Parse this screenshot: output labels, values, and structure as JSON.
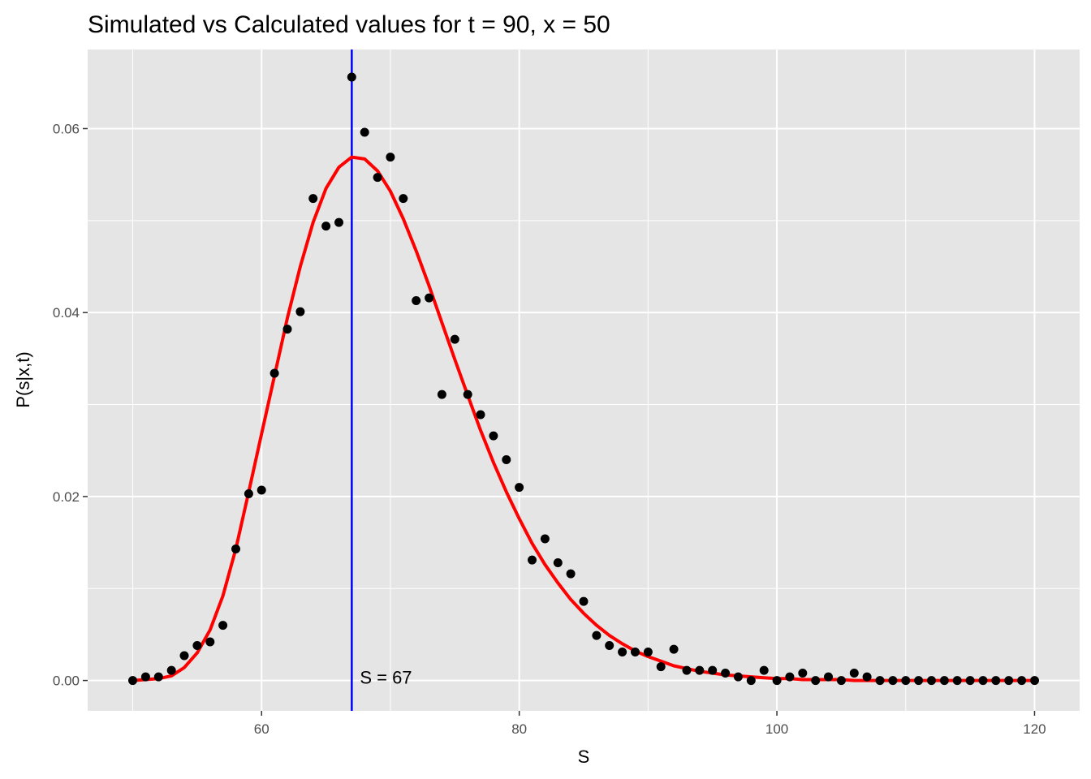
{
  "chart_data": {
    "type": "scatter",
    "title": "Simulated vs Calculated values for t = 90, x = 50",
    "xlabel": "S",
    "ylabel": "P(s|x,t)",
    "xlim": [
      46.5,
      123.5
    ],
    "ylim": [
      -0.0033,
      0.0686
    ],
    "x_ticks": [
      60,
      80,
      100,
      120
    ],
    "x_tick_labels": [
      "60",
      "80",
      "100",
      "120"
    ],
    "y_ticks": [
      0.0,
      0.02,
      0.04,
      0.06
    ],
    "y_tick_labels": [
      "0.00",
      "0.02",
      "0.04",
      "0.06"
    ],
    "grid": true,
    "background_color": "#e5e5e5",
    "grid_color": "#ffffff",
    "series": [
      {
        "kind": "points",
        "color": "#000000",
        "x": [
          50,
          51,
          52,
          53,
          54,
          55,
          56,
          57,
          58,
          59,
          60,
          61,
          62,
          63,
          64,
          65,
          66,
          67,
          68,
          69,
          70,
          71,
          72,
          73,
          74,
          75,
          76,
          77,
          78,
          79,
          80,
          81,
          82,
          83,
          84,
          85,
          86,
          87,
          88,
          89,
          90,
          91,
          92,
          93,
          94,
          95,
          96,
          97,
          98,
          99,
          100,
          101,
          102,
          103,
          104,
          105,
          106,
          107,
          108,
          109,
          110,
          111,
          112,
          113,
          114,
          115,
          116,
          117,
          118,
          119,
          120
        ],
        "y": [
          0.0,
          0.0004,
          0.0004,
          0.0011,
          0.0027,
          0.0038,
          0.0042,
          0.006,
          0.0143,
          0.0203,
          0.0207,
          0.0334,
          0.0382,
          0.0401,
          0.0524,
          0.0494,
          0.0498,
          0.0656,
          0.0596,
          0.0547,
          0.0569,
          0.0524,
          0.0413,
          0.0416,
          0.0311,
          0.0371,
          0.0311,
          0.0289,
          0.0266,
          0.024,
          0.021,
          0.0131,
          0.0154,
          0.0128,
          0.0116,
          0.0086,
          0.0049,
          0.0038,
          0.0031,
          0.0031,
          0.0031,
          0.0015,
          0.0034,
          0.0011,
          0.0011,
          0.0011,
          0.0008,
          0.0004,
          0.0,
          0.0011,
          0.0,
          0.0004,
          0.0008,
          0.0,
          0.0004,
          0.0,
          0.0008,
          0.0004,
          0.0,
          0.0,
          0.0,
          0.0,
          0.0,
          0.0,
          0.0,
          0.0,
          0.0,
          0.0,
          0.0,
          0.0,
          0.0
        ]
      },
      {
        "kind": "line",
        "color": "#ff0000",
        "x": [
          50,
          51,
          52,
          53,
          54,
          55,
          56,
          57,
          58,
          59,
          60,
          61,
          62,
          63,
          64,
          65,
          66,
          67,
          68,
          69,
          70,
          71,
          72,
          73,
          74,
          75,
          76,
          77,
          78,
          79,
          80,
          81,
          82,
          83,
          84,
          85,
          86,
          87,
          88,
          89,
          90,
          91,
          92,
          93,
          94,
          95,
          96,
          97,
          98,
          99,
          100,
          101,
          102,
          103,
          104,
          105,
          106,
          107,
          108,
          109,
          110,
          111,
          112,
          113,
          114,
          115,
          116,
          117,
          118,
          119,
          120
        ],
        "y": [
          0.0,
          0.0001,
          0.0002,
          0.0005,
          0.0014,
          0.003,
          0.0055,
          0.0092,
          0.0143,
          0.0205,
          0.0268,
          0.0331,
          0.0394,
          0.045,
          0.0498,
          0.0535,
          0.0558,
          0.0569,
          0.0567,
          0.0554,
          0.0532,
          0.0502,
          0.0467,
          0.0429,
          0.0389,
          0.0349,
          0.031,
          0.0272,
          0.0237,
          0.0205,
          0.0176,
          0.0149,
          0.0126,
          0.0106,
          0.0088,
          0.0073,
          0.006,
          0.0049,
          0.004,
          0.0032,
          0.0026,
          0.0021,
          0.0016,
          0.0013,
          0.001,
          0.0008,
          0.0006,
          0.0005,
          0.0004,
          0.0003,
          0.0002,
          0.0002,
          0.0001,
          0.0001,
          0.0001,
          0.0001,
          0.0,
          0.0,
          0.0,
          0.0,
          0.0,
          0.0,
          0.0,
          0.0,
          0.0,
          0.0,
          0.0,
          0.0,
          0.0,
          0.0,
          0.0
        ]
      }
    ],
    "vline": {
      "x": 67,
      "color": "#0000ff"
    },
    "annotation": {
      "text": "S = 67",
      "x": 67,
      "y": 0.0
    }
  }
}
